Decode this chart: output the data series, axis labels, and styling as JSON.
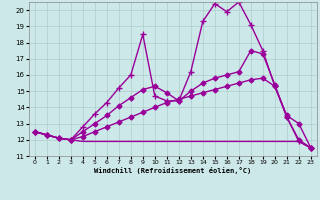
{
  "bg_color": "#cde8e8",
  "grid_color": "#b0cece",
  "line_color": "#990099",
  "xlabel": "Windchill (Refroidissement éolien,°C)",
  "xlim": [
    -0.5,
    23.5
  ],
  "ylim": [
    11,
    20.5
  ],
  "yticks": [
    11,
    12,
    13,
    14,
    15,
    16,
    17,
    18,
    19,
    20
  ],
  "xticks": [
    0,
    1,
    2,
    3,
    4,
    5,
    6,
    7,
    8,
    9,
    10,
    11,
    12,
    13,
    14,
    15,
    16,
    17,
    18,
    19,
    20,
    21,
    22,
    23
  ],
  "lines": [
    {
      "x": [
        0,
        1,
        2,
        3,
        4,
        5,
        6,
        7,
        8,
        9,
        10,
        11,
        12,
        13,
        14,
        15,
        16,
        17,
        18,
        19,
        20,
        21,
        22,
        23
      ],
      "y": [
        12.5,
        12.3,
        12.1,
        12.0,
        11.9,
        11.9,
        11.9,
        11.9,
        11.9,
        11.9,
        11.9,
        11.9,
        11.9,
        11.9,
        11.9,
        11.9,
        11.9,
        11.9,
        11.9,
        11.9,
        11.9,
        11.9,
        11.9,
        11.5
      ],
      "marker": null,
      "lw": 1.0
    },
    {
      "x": [
        0,
        1,
        2,
        3,
        4,
        5,
        6,
        7,
        8,
        9,
        10,
        11,
        12,
        13,
        14,
        15,
        16,
        17,
        18,
        19,
        20,
        21,
        22,
        23
      ],
      "y": [
        12.5,
        12.3,
        12.1,
        12.0,
        12.2,
        12.5,
        12.8,
        13.1,
        13.4,
        13.7,
        14.0,
        14.3,
        14.5,
        14.7,
        14.9,
        15.1,
        15.3,
        15.5,
        15.7,
        15.8,
        15.3,
        13.5,
        13.0,
        11.5
      ],
      "marker": "D",
      "lw": 1.0
    },
    {
      "x": [
        0,
        1,
        2,
        3,
        4,
        5,
        6,
        7,
        8,
        9,
        10,
        11,
        12,
        13,
        14,
        15,
        16,
        17,
        18,
        19,
        20,
        21,
        22,
        23
      ],
      "y": [
        12.5,
        12.3,
        12.1,
        12.0,
        12.5,
        13.0,
        13.5,
        14.1,
        14.6,
        15.1,
        15.3,
        14.9,
        14.4,
        15.0,
        15.5,
        15.8,
        16.0,
        16.2,
        17.5,
        17.3,
        15.4,
        13.4,
        12.0,
        11.5
      ],
      "marker": "D",
      "lw": 1.0
    },
    {
      "x": [
        0,
        1,
        2,
        3,
        4,
        5,
        6,
        7,
        8,
        9,
        10,
        11,
        12,
        13,
        14,
        15,
        16,
        17,
        18,
        19,
        20,
        21,
        22,
        23
      ],
      "y": [
        12.5,
        12.3,
        12.1,
        12.0,
        12.8,
        13.6,
        14.3,
        15.2,
        16.0,
        18.5,
        14.7,
        14.4,
        14.4,
        16.2,
        19.3,
        20.4,
        19.9,
        20.5,
        19.1,
        17.5,
        15.3,
        13.4,
        11.9,
        11.5
      ],
      "marker": "+",
      "lw": 1.0
    }
  ]
}
